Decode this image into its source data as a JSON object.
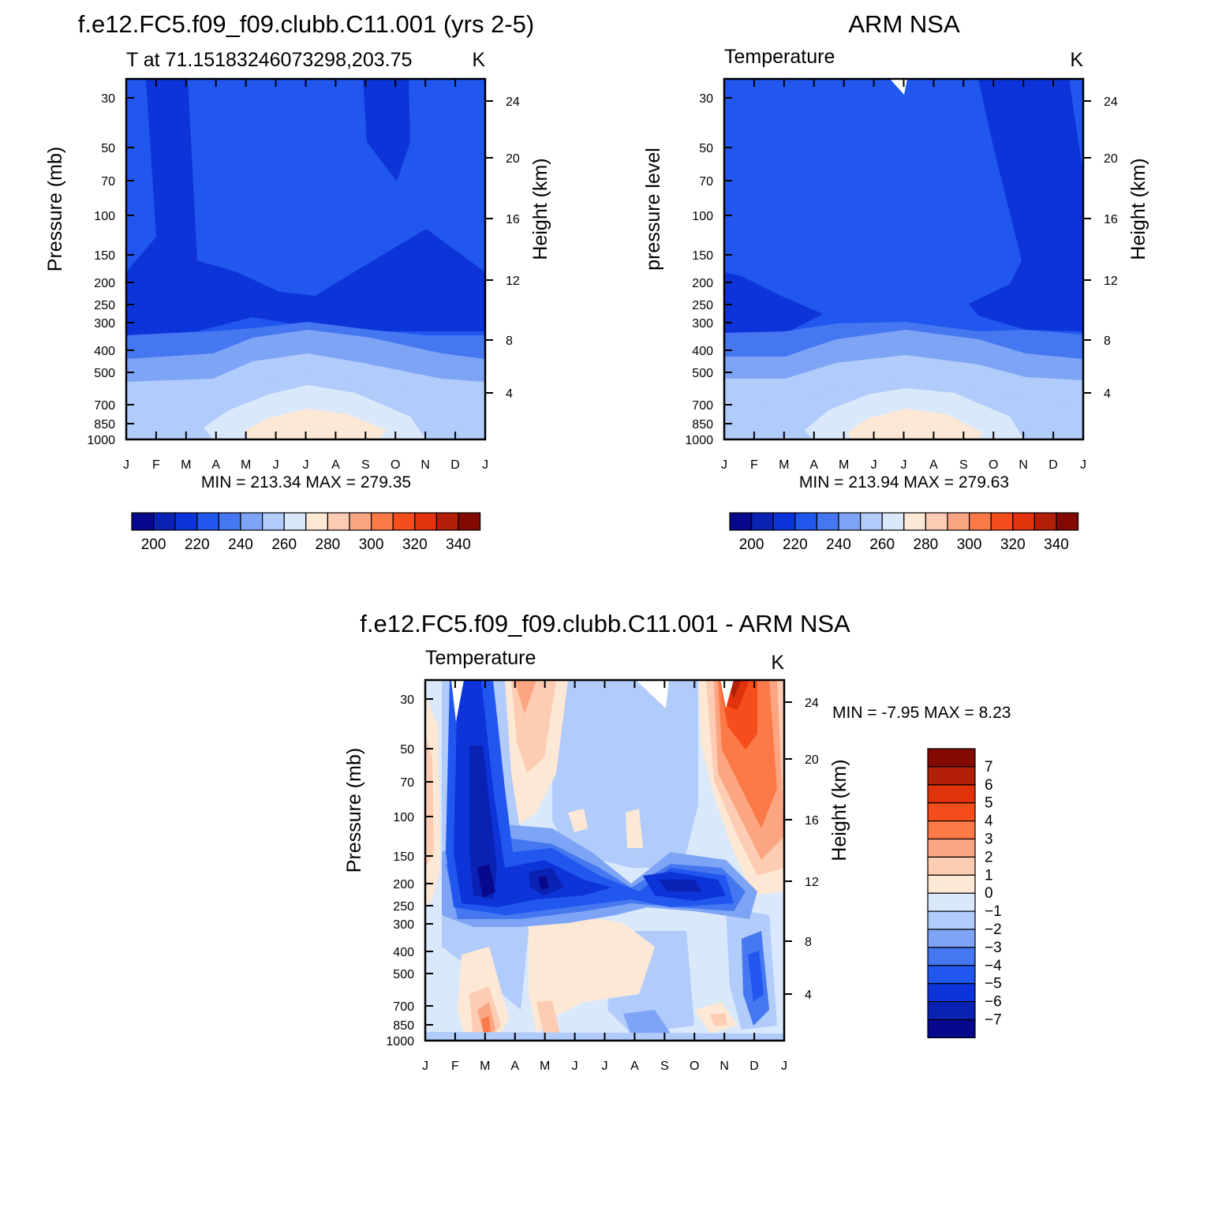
{
  "chart_data": [
    {
      "type": "heatmap",
      "id": "model",
      "title": "f.e12.FC5.f09_f09.clubb.C11.001 (yrs 2-5)",
      "subtitle_left": "T at 71.15183246073298,203.75",
      "subtitle_right": "K",
      "ylabel_left": "Pressure (mb)",
      "ylabel_right": "Height (km)",
      "min_max_text": "MIN = 213.34  MAX = 279.35",
      "x_tick_labels": [
        "J",
        "F",
        "M",
        "A",
        "M",
        "J",
        "J",
        "A",
        "S",
        "O",
        "N",
        "D",
        "J"
      ],
      "pressure_ticks": [
        "30",
        "50",
        "70",
        "100",
        "150",
        "200",
        "250",
        "300",
        "400",
        "500",
        "700",
        "850",
        "1000"
      ],
      "height_ticks": [
        "24",
        "20",
        "16",
        "12",
        "8",
        "4"
      ],
      "colorbar": {
        "orientation": "horizontal",
        "labels": [
          "200",
          "220",
          "240",
          "260",
          "280",
          "300",
          "320",
          "340"
        ]
      },
      "ylim_mb": [
        1000,
        25
      ],
      "fields": {
        "tropopause_cold_min": 213.34,
        "surface_summer_max": 279.35
      }
    },
    {
      "type": "heatmap",
      "id": "obs",
      "title": "ARM NSA",
      "subtitle_left": "Temperature",
      "subtitle_right": "K",
      "ylabel_left": "pressure level",
      "ylabel_right": "Height (km)",
      "min_max_text": "MIN = 213.94  MAX = 279.63",
      "x_tick_labels": [
        "J",
        "F",
        "M",
        "A",
        "M",
        "J",
        "J",
        "A",
        "S",
        "O",
        "N",
        "D",
        "J"
      ],
      "pressure_ticks": [
        "30",
        "50",
        "70",
        "100",
        "150",
        "200",
        "250",
        "300",
        "400",
        "500",
        "700",
        "850",
        "1000"
      ],
      "height_ticks": [
        "24",
        "20",
        "16",
        "12",
        "8",
        "4"
      ],
      "colorbar": {
        "orientation": "horizontal",
        "labels": [
          "200",
          "220",
          "240",
          "260",
          "280",
          "300",
          "320",
          "340"
        ]
      },
      "ylim_mb": [
        1000,
        25
      ]
    },
    {
      "type": "heatmap",
      "id": "diff",
      "title": "f.e12.FC5.f09_f09.clubb.C11.001 - ARM NSA",
      "subtitle_left": "Temperature",
      "subtitle_right": "K",
      "ylabel_left": "Pressure (mb)",
      "ylabel_right": "Height (km)",
      "min_max_text": "MIN =   -7.95  MAX =     8.23",
      "x_tick_labels": [
        "J",
        "F",
        "M",
        "A",
        "M",
        "J",
        "J",
        "A",
        "S",
        "O",
        "N",
        "D",
        "J"
      ],
      "pressure_ticks": [
        "30",
        "50",
        "70",
        "100",
        "150",
        "200",
        "250",
        "300",
        "400",
        "500",
        "700",
        "850",
        "1000"
      ],
      "height_ticks": [
        "24",
        "20",
        "16",
        "12",
        "8",
        "4"
      ],
      "colorbar": {
        "orientation": "vertical",
        "labels": [
          "7",
          "6",
          "5",
          "4",
          "3",
          "2",
          "1",
          "0",
          "−1",
          "−2",
          "−3",
          "−4",
          "−5",
          "−6",
          "−7"
        ]
      },
      "ylim_mb": [
        1000,
        25
      ]
    }
  ],
  "palettes": {
    "abs": [
      "#08088c",
      "#0a22b4",
      "#0d34d9",
      "#2156ef",
      "#4477f0",
      "#7ea4f5",
      "#b1cbfa",
      "#d9e8fb",
      "#fde8d5",
      "#fdccb3",
      "#fca582",
      "#fb7a47",
      "#f54d1b",
      "#e0330c",
      "#b21f08",
      "#830a03"
    ],
    "diff": [
      "#08088c",
      "#0a22b4",
      "#0d34d9",
      "#2156ef",
      "#4477f0",
      "#7ea4f5",
      "#b1cbfa",
      "#d9e8fb",
      "#fde8d5",
      "#fdccb3",
      "#fca582",
      "#fb7a47",
      "#f54d1b",
      "#e0330c",
      "#b21f08",
      "#830a03"
    ]
  }
}
